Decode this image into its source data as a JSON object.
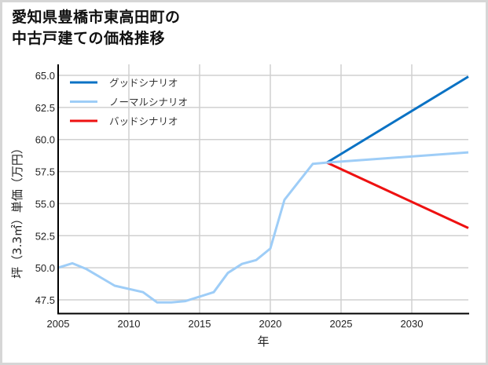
{
  "title": {
    "line1": "愛知県豊橋市東高田町の",
    "line2": "中古戸建ての価格推移"
  },
  "axes": {
    "xlabel": "年",
    "ylabel": "坪（3.3㎡）単価（万円）",
    "xticks": [
      "2005",
      "2010",
      "2015",
      "2020",
      "2025",
      "2030"
    ],
    "yticks": [
      "47.5",
      "50.0",
      "52.5",
      "55.0",
      "57.5",
      "60.0",
      "62.5",
      "65.0"
    ]
  },
  "legend": [
    {
      "label": "グッドシナリオ",
      "color": "#0a72c4"
    },
    {
      "label": "ノーマルシナリオ",
      "color": "#9ecdf7"
    },
    {
      "label": "バッドシナリオ",
      "color": "#ee1111"
    }
  ],
  "chart_data": {
    "type": "line",
    "title": "愛知県豊橋市東高田町の中古戸建ての価格推移",
    "xlabel": "年",
    "ylabel": "坪（3.3㎡）単価（万円）",
    "xlim": [
      2005,
      2034
    ],
    "ylim": [
      46.5,
      65.3
    ],
    "grid": true,
    "legend_position": "upper left",
    "series": [
      {
        "name": "ノーマルシナリオ",
        "color": "#9ecdf7",
        "x": [
          2005,
          2006,
          2007,
          2009,
          2011,
          2012,
          2013,
          2014,
          2016,
          2017,
          2018,
          2019,
          2020,
          2021,
          2023,
          2024,
          2034
        ],
        "values": [
          50.0,
          50.35,
          49.9,
          48.6,
          48.1,
          47.3,
          47.3,
          47.4,
          48.1,
          49.6,
          50.3,
          50.6,
          51.5,
          55.3,
          58.1,
          58.2,
          59.0
        ]
      },
      {
        "name": "グッドシナリオ",
        "color": "#0a72c4",
        "x": [
          2024,
          2034
        ],
        "values": [
          58.2,
          64.9
        ]
      },
      {
        "name": "バッドシナリオ",
        "color": "#ee1111",
        "x": [
          2024,
          2034
        ],
        "values": [
          58.2,
          53.1
        ]
      }
    ]
  }
}
